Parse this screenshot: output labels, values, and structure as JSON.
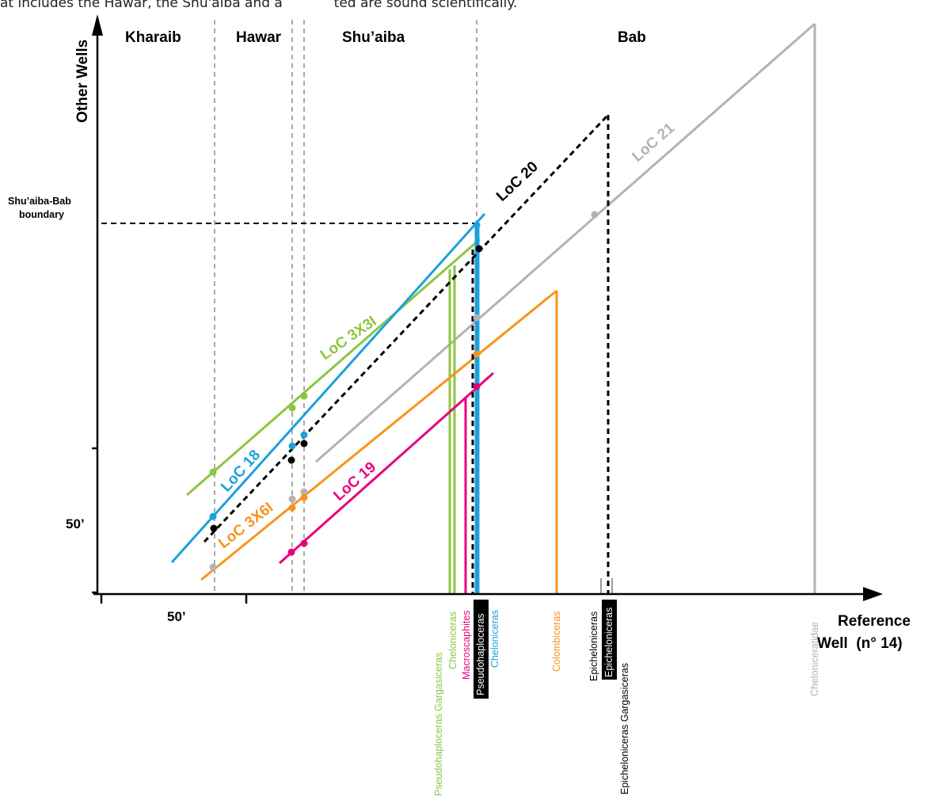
{
  "header_text": "at includes the Hawar, the Shu'aiba and a            ted are sound scientifically.",
  "axes": {
    "y_label": "Other Wells",
    "x_label_line1": "Reference",
    "x_label_line2": "Well  (n° 14)",
    "x_tick": "50’",
    "y_tick": "50’",
    "boundary_line1": "Shu’aiba-Bab",
    "boundary_line2": "boundary"
  },
  "formations": [
    "Kharaib",
    "Hawar",
    "Shu’aiba",
    "Bab"
  ],
  "colors": {
    "green": "#8cc63f",
    "blue": "#1ba1dc",
    "black": "#000000",
    "orange": "#f7941d",
    "magenta": "#e6007e",
    "gray": "#b3b3b3"
  },
  "loc_lines": [
    {
      "id": "loc-3x3i",
      "label": "LoC 3X3I",
      "color": "green"
    },
    {
      "id": "loc-18",
      "label": "LoC 18",
      "color": "blue"
    },
    {
      "id": "loc-20",
      "label": "LoC 20",
      "color": "black"
    },
    {
      "id": "loc-21",
      "label": "LoC 21",
      "color": "gray"
    },
    {
      "id": "loc-3x6i",
      "label": "LoC 3X6I",
      "color": "orange"
    },
    {
      "id": "loc-19",
      "label": "LoC 19",
      "color": "magenta"
    }
  ],
  "taxa": [
    {
      "label": "Pseudohaploceras Gargasiceras",
      "color": "green",
      "highlight": false
    },
    {
      "label": "Cheloniceras",
      "color": "green",
      "highlight": false
    },
    {
      "label": "Macroscaphites",
      "color": "magenta",
      "highlight": false
    },
    {
      "label": "Pseudohaploceras",
      "color": "black",
      "highlight": true
    },
    {
      "label": "Cheloniceras",
      "color": "blue",
      "highlight": false
    },
    {
      "label": "Colombiceras",
      "color": "orange",
      "highlight": false
    },
    {
      "label": "Epicheloniceras",
      "color": "black",
      "highlight": false
    },
    {
      "label": "Epicheloniceras",
      "color": "black",
      "highlight": true
    },
    {
      "label": "Epicheloniceras Gargasiceras",
      "color": "black",
      "highlight": false
    },
    {
      "label": "Cheloniceratidae",
      "color": "gray",
      "highlight": false
    }
  ]
}
